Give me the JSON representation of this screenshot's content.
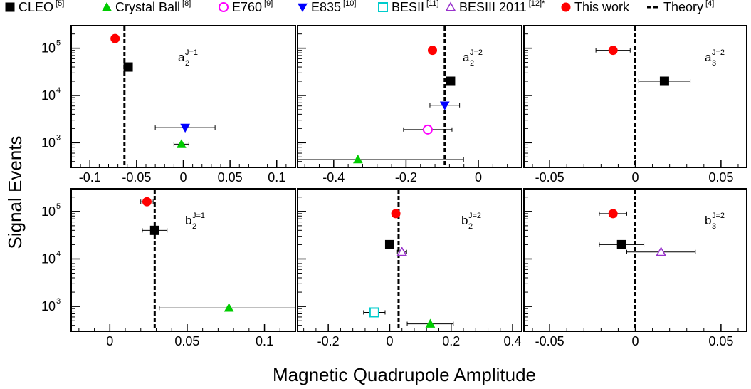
{
  "figure": {
    "xlabel": "Magnetic Quadrupole Amplitude",
    "ylabel": "Signal Events"
  },
  "legend": [
    {
      "key": "cleo",
      "label": "CLEO",
      "ref": "[5]",
      "marker": "square-filled",
      "color": "#000000"
    },
    {
      "key": "cb",
      "label": "Crystal Ball",
      "ref": "[8]",
      "marker": "triangle-up-filled",
      "color": "#00cc00"
    },
    {
      "key": "e760",
      "label": "E760",
      "ref": "[9]",
      "marker": "circle-open",
      "color": "#ff00ff"
    },
    {
      "key": "e835",
      "label": "E835",
      "ref": "[10]",
      "marker": "triangle-down-filled",
      "color": "#0000ff"
    },
    {
      "key": "besii",
      "label": "BESII",
      "ref": "[11]",
      "marker": "square-open",
      "color": "#00cccc"
    },
    {
      "key": "besiii2011",
      "label": "BESIII 2011",
      "ref": "[12]*",
      "marker": "triangle-up-open",
      "color": "#9933cc"
    },
    {
      "key": "thiswork",
      "label": "This work",
      "ref": "",
      "marker": "circle-filled",
      "color": "#ff0000"
    },
    {
      "key": "theory",
      "label": "Theory",
      "ref": "[4]",
      "marker": "dashed-line",
      "color": "#000000"
    }
  ],
  "chart_data": [
    {
      "type": "scatter",
      "panel": "a2_J1",
      "label_base": "a",
      "label_sub": "2",
      "label_sup": "J=1",
      "y_scale": "log",
      "ylim": [
        300,
        300000
      ],
      "xlim": [
        -0.12,
        0.12
      ],
      "xticks": [
        -0.1,
        -0.05,
        0,
        0.05,
        0.1
      ],
      "xtick_labels": [
        "-0.1",
        "-0.05",
        "0",
        "0.05",
        "0.1"
      ],
      "yticks": [
        1000,
        10000,
        100000
      ],
      "ytick_base": [
        "10",
        "10",
        "10"
      ],
      "ytick_exp": [
        "3",
        "4",
        "5"
      ],
      "show_xtick_labels": true,
      "show_ytick_labels": true,
      "theory_x": -0.063,
      "points": [
        {
          "series": "thiswork",
          "x": -0.073,
          "xerr": 0.0,
          "y": 160000
        },
        {
          "series": "cleo",
          "x": -0.059,
          "xerr": 0.004,
          "y": 40000
        },
        {
          "series": "e835",
          "x": 0.002,
          "xerr": 0.032,
          "y": 2090
        },
        {
          "series": "cb",
          "x": -0.002,
          "xerr": 0.008,
          "y": 930
        }
      ]
    },
    {
      "type": "scatter",
      "panel": "a2_J2",
      "label_base": "a",
      "label_sub": "2",
      "label_sup": "J=2",
      "y_scale": "log",
      "ylim": [
        300,
        300000
      ],
      "xlim": [
        -0.5,
        0.12
      ],
      "xticks": [
        -0.4,
        -0.2,
        0
      ],
      "xtick_labels": [
        "-0.4",
        "-0.2",
        "0"
      ],
      "yticks": [
        1000,
        10000,
        100000
      ],
      "ytick_base": [
        "10",
        "10",
        "10"
      ],
      "ytick_exp": [
        "3",
        "4",
        "5"
      ],
      "show_xtick_labels": true,
      "show_ytick_labels": false,
      "theory_x": -0.093,
      "points": [
        {
          "series": "thiswork",
          "x": -0.127,
          "xerr": 0.0,
          "y": 90000
        },
        {
          "series": "cleo",
          "x": -0.077,
          "xerr": 0.0,
          "y": 20000
        },
        {
          "series": "e835",
          "x": -0.093,
          "xerr": 0.041,
          "y": 6200
        },
        {
          "series": "e760",
          "x": -0.14,
          "xerr": 0.067,
          "y": 1900
        },
        {
          "series": "cb",
          "x": -0.333,
          "xerr": 0.292,
          "y": 440
        }
      ]
    },
    {
      "type": "scatter",
      "panel": "a3_J2",
      "label_base": "a",
      "label_sub": "3",
      "label_sup": "J=2",
      "y_scale": "log",
      "ylim": [
        300,
        300000
      ],
      "xlim": [
        -0.065,
        0.065
      ],
      "xticks": [
        -0.05,
        0,
        0.05
      ],
      "xtick_labels": [
        "-0.05",
        "0",
        "0.05"
      ],
      "yticks": [
        1000,
        10000,
        100000
      ],
      "ytick_base": [
        "10",
        "10",
        "10"
      ],
      "ytick_exp": [
        "3",
        "4",
        "5"
      ],
      "show_xtick_labels": true,
      "show_ytick_labels": false,
      "theory_x": 0,
      "points": [
        {
          "series": "thiswork",
          "x": -0.013,
          "xerr": 0.01,
          "y": 90000
        },
        {
          "series": "cleo",
          "x": 0.017,
          "xerr": 0.015,
          "y": 20000
        }
      ]
    },
    {
      "type": "scatter",
      "panel": "b2_J1",
      "label_base": "b",
      "label_sub": "2",
      "label_sup": "J=1",
      "y_scale": "log",
      "ylim": [
        300,
        300000
      ],
      "xlim": [
        -0.025,
        0.12
      ],
      "xticks": [
        0,
        0.05,
        0.1
      ],
      "xtick_labels": [
        "0",
        "0.05",
        "0.1"
      ],
      "yticks": [
        1000,
        10000,
        100000
      ],
      "ytick_base": [
        "10",
        "10",
        "10"
      ],
      "ytick_exp": [
        "3",
        "4",
        "5"
      ],
      "show_xtick_labels": true,
      "show_ytick_labels": true,
      "theory_x": 0.029,
      "points": [
        {
          "series": "thiswork",
          "x": 0.024,
          "xerr": 0.004,
          "y": 160000
        },
        {
          "series": "cleo",
          "x": 0.029,
          "xerr": 0.008,
          "y": 40000
        },
        {
          "series": "cb",
          "x": 0.077,
          "xerr": 0.045,
          "y": 930
        }
      ]
    },
    {
      "type": "scatter",
      "panel": "b2_J2",
      "label_base": "b",
      "label_sub": "2",
      "label_sup": "J=2",
      "y_scale": "log",
      "ylim": [
        300,
        300000
      ],
      "xlim": [
        -0.3,
        0.43
      ],
      "xticks": [
        -0.2,
        0,
        0.2,
        0.4
      ],
      "xtick_labels": [
        "-0.2",
        "0",
        "0.2",
        "0.4"
      ],
      "yticks": [
        1000,
        10000,
        100000
      ],
      "ytick_base": [
        "10",
        "10",
        "10"
      ],
      "ytick_exp": [
        "3",
        "4",
        "5"
      ],
      "show_xtick_labels": true,
      "show_ytick_labels": false,
      "theory_x": 0.029,
      "points": [
        {
          "series": "thiswork",
          "x": 0.02,
          "xerr": 0.0,
          "y": 90000
        },
        {
          "series": "cleo",
          "x": 0.0,
          "xerr": 0.0,
          "y": 20000
        },
        {
          "series": "besiii2011",
          "x": 0.04,
          "xerr": 0.015,
          "y": 14000
        },
        {
          "series": "besii",
          "x": -0.05,
          "xerr": 0.035,
          "y": 750
        },
        {
          "series": "cb",
          "x": 0.132,
          "xerr": 0.075,
          "y": 430
        }
      ]
    },
    {
      "type": "scatter",
      "panel": "b3_J2",
      "label_base": "b",
      "label_sub": "3",
      "label_sup": "J=2",
      "y_scale": "log",
      "ylim": [
        300,
        300000
      ],
      "xlim": [
        -0.065,
        0.065
      ],
      "xticks": [
        -0.05,
        0,
        0.05
      ],
      "xtick_labels": [
        "-0.05",
        "0",
        "0.05"
      ],
      "yticks": [
        1000,
        10000,
        100000
      ],
      "ytick_base": [
        "10",
        "10",
        "10"
      ],
      "ytick_exp": [
        "3",
        "4",
        "5"
      ],
      "show_xtick_labels": true,
      "show_ytick_labels": false,
      "theory_x": 0,
      "points": [
        {
          "series": "thiswork",
          "x": -0.013,
          "xerr": 0.008,
          "y": 90000
        },
        {
          "series": "cleo",
          "x": -0.008,
          "xerr": 0.013,
          "y": 20000
        },
        {
          "series": "besiii2011",
          "x": 0.015,
          "xerr": 0.02,
          "y": 14000
        }
      ]
    }
  ]
}
